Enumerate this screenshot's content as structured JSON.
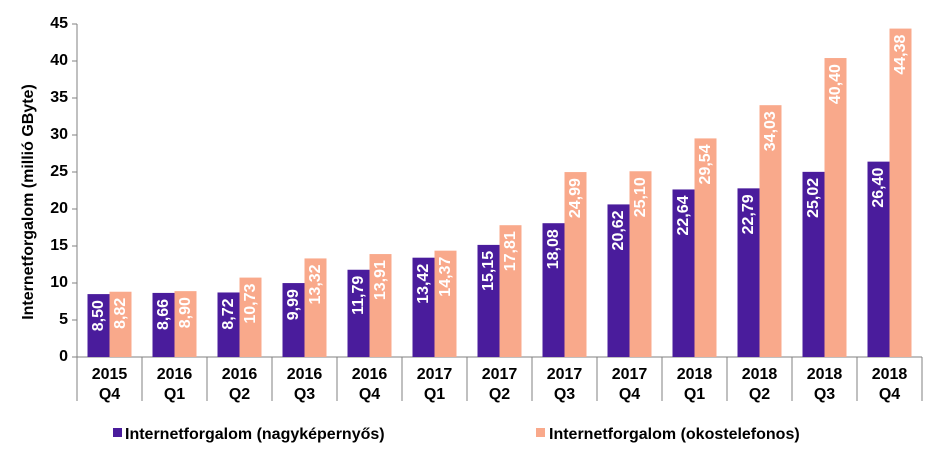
{
  "chart_data": {
    "type": "bar",
    "ylabel": "Internetforgalom (millió GByte)",
    "xlabel": "",
    "ylim": [
      0,
      45
    ],
    "yticks": [
      "0",
      "5",
      "10",
      "15",
      "20",
      "25",
      "30",
      "35",
      "40",
      "45"
    ],
    "grid": false,
    "legend_position": "bottom",
    "categories": [
      [
        "2015",
        "Q4"
      ],
      [
        "2016",
        "Q1"
      ],
      [
        "2016",
        "Q2"
      ],
      [
        "2016",
        "Q3"
      ],
      [
        "2016",
        "Q4"
      ],
      [
        "2017",
        "Q1"
      ],
      [
        "2017",
        "Q2"
      ],
      [
        "2017",
        "Q3"
      ],
      [
        "2017",
        "Q4"
      ],
      [
        "2018",
        "Q1"
      ],
      [
        "2018",
        "Q2"
      ],
      [
        "2018",
        "Q3"
      ],
      [
        "2018",
        "Q4"
      ]
    ],
    "series": [
      {
        "name": "Internetforgalom (nagyképernyős)",
        "color": "#4a1c9c",
        "values": [
          8.5,
          8.66,
          8.72,
          9.99,
          11.79,
          13.42,
          15.15,
          18.08,
          20.62,
          22.64,
          22.79,
          25.02,
          26.4
        ],
        "labels": [
          "8,50",
          "8,66",
          "8,72",
          "9,99",
          "11,79",
          "13,42",
          "15,15",
          "18,08",
          "20,62",
          "22,64",
          "22,79",
          "25,02",
          "26,40"
        ]
      },
      {
        "name": "Internetforgalom (okostelefonos)",
        "color": "#f9a98b",
        "values": [
          8.82,
          8.9,
          10.73,
          13.32,
          13.91,
          14.37,
          17.81,
          24.99,
          25.1,
          29.54,
          34.03,
          40.4,
          44.38
        ],
        "labels": [
          "8,82",
          "8,90",
          "10,73",
          "13,32",
          "13,91",
          "14,37",
          "17,81",
          "24,99",
          "25,10",
          "29,54",
          "34,03",
          "40,40",
          "44,38"
        ]
      }
    ]
  }
}
